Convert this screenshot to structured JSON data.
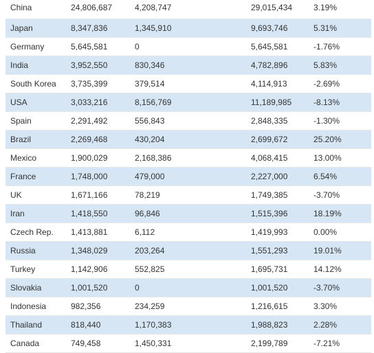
{
  "table": {
    "rows": [
      {
        "country": "China",
        "a": "24,806,687",
        "b": "4,208,747",
        "total": "29,015,434",
        "change": "3.19%"
      },
      {
        "country": "Japan",
        "a": "8,347,836",
        "b": "1,345,910",
        "total": "9,693,746",
        "change": "5.31%"
      },
      {
        "country": "Germany",
        "a": "5,645,581",
        "b": "0",
        "total": "5,645,581",
        "change": "-1.76%"
      },
      {
        "country": "India",
        "a": "3,952,550",
        "b": "830,346",
        "total": "4,782,896",
        "change": "5.83%"
      },
      {
        "country": "South Korea",
        "a": "3,735,399",
        "b": "379,514",
        "total": "4,114,913",
        "change": "-2.69%"
      },
      {
        "country": "USA",
        "a": "3,033,216",
        "b": "8,156,769",
        "total": "11,189,985",
        "change": "-8.13%"
      },
      {
        "country": "Spain",
        "a": "2,291,492",
        "b": "556,843",
        "total": "2,848,335",
        "change": "-1.30%"
      },
      {
        "country": "Brazil",
        "a": "2,269,468",
        "b": "430,204",
        "total": "2,699,672",
        "change": "25.20%"
      },
      {
        "country": "Mexico",
        "a": "1,900,029",
        "b": "2,168,386",
        "total": "4,068,415",
        "change": "13.00%"
      },
      {
        "country": "France",
        "a": "1,748,000",
        "b": "479,000",
        "total": "2,227,000",
        "change": "6.54%"
      },
      {
        "country": "UK",
        "a": "1,671,166",
        "b": "78,219",
        "total": "1,749,385",
        "change": "-3.70%"
      },
      {
        "country": "Iran",
        "a": "1,418,550",
        "b": "96,846",
        "total": "1,515,396",
        "change": "18.19%"
      },
      {
        "country": "Czech Rep.",
        "a": "1,413,881",
        "b": "6,112",
        "total": "1,419,993",
        "change": "0.00%"
      },
      {
        "country": "Russia",
        "a": "1,348,029",
        "b": "203,264",
        "total": "1,551,293",
        "change": "19.01%"
      },
      {
        "country": "Turkey",
        "a": "1,142,906",
        "b": "552,825",
        "total": "1,695,731",
        "change": "14.12%"
      },
      {
        "country": "Slovakia",
        "a": "1,001,520",
        "b": "0",
        "total": "1,001,520",
        "change": "-3.70%"
      },
      {
        "country": "Indonesia",
        "a": "982,356",
        "b": "234,259",
        "total": "1,216,615",
        "change": "3.30%"
      },
      {
        "country": "Thailand",
        "a": "818,440",
        "b": "1,170,383",
        "total": "1,988,823",
        "change": "2.28%"
      },
      {
        "country": "Canada",
        "a": "749,458",
        "b": "1,450,331",
        "total": "2,199,789",
        "change": "-7.21%"
      }
    ]
  },
  "colors": {
    "stripe": "#d6e6f5",
    "text": "#333333",
    "background": "#ffffff"
  }
}
